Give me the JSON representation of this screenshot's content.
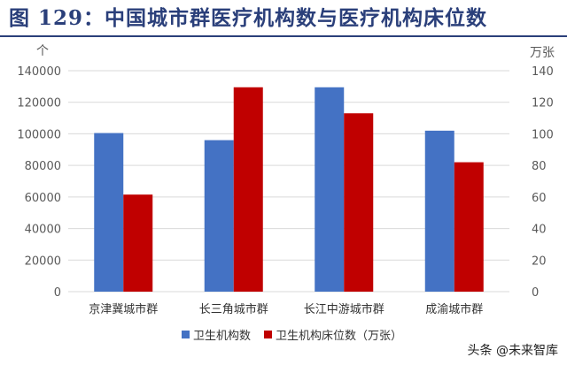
{
  "figure": {
    "title": "图 129：中国城市群医疗机构数与医疗机构床位数",
    "watermark": "头条 @未来智库"
  },
  "colors": {
    "series1": "#4472c4",
    "series2": "#c00000",
    "title": "#2a3f7a",
    "grid": "#d9d9d9",
    "axis_text": "#595959"
  },
  "chart_data": {
    "type": "bar",
    "categories": [
      "京津冀城市群",
      "长三角城市群",
      "长江中游城市群",
      "成渝城市群"
    ],
    "series": [
      {
        "name": "卫生机构数",
        "axis": "left",
        "values": [
          100500,
          96000,
          129500,
          102000
        ]
      },
      {
        "name": "卫生机构床位数（万张）",
        "axis": "right",
        "values": [
          61.5,
          129.5,
          113,
          82
        ]
      }
    ],
    "ylabel_left": "个",
    "ylabel_right": "万张",
    "ylim_left": [
      0,
      140000
    ],
    "ylim_right": [
      0,
      140
    ],
    "yticks_left": [
      "0",
      "20000",
      "40000",
      "60000",
      "80000",
      "100000",
      "120000",
      "140000"
    ],
    "yticks_right": [
      "0",
      "20",
      "40",
      "60",
      "80",
      "100",
      "120",
      "140"
    ],
    "grid": true,
    "legend_position": "bottom"
  }
}
